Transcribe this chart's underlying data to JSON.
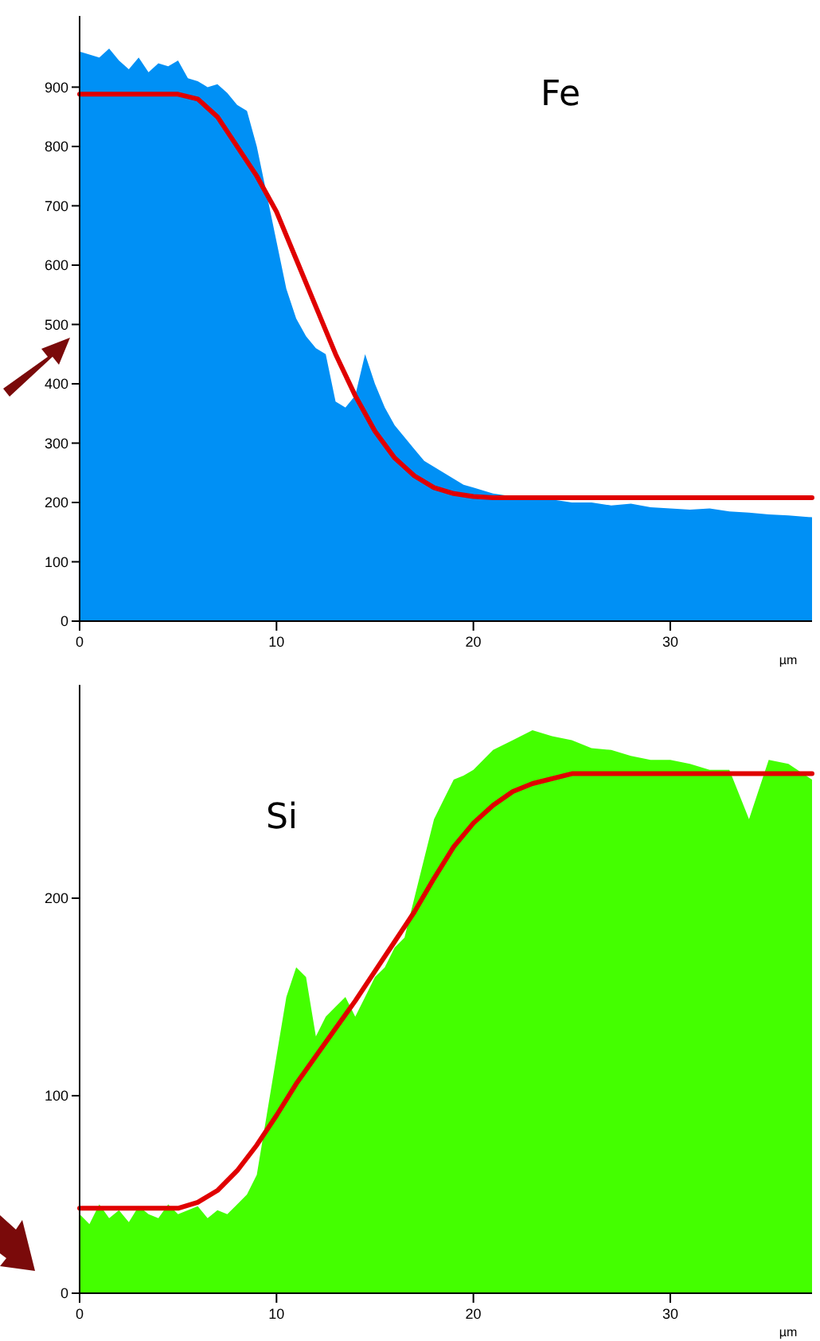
{
  "chart_data": [
    {
      "type": "area",
      "title": "Fe",
      "xlabel": "µm",
      "xlim": [
        0,
        37.2
      ],
      "ylim": [
        0,
        1020
      ],
      "xticks": [
        0,
        10,
        20,
        30
      ],
      "yticks": [
        0,
        100,
        200,
        300,
        400,
        500,
        600,
        700,
        800,
        900
      ],
      "series": [
        {
          "color": "#0090f5",
          "x": [
            0,
            0.5,
            1,
            1.5,
            2,
            2.5,
            3,
            3.5,
            4,
            4.5,
            5,
            5.5,
            6,
            6.5,
            7,
            7.5,
            8,
            8.5,
            9,
            9.5,
            10,
            10.5,
            11,
            11.5,
            12,
            12.5,
            13,
            13.5,
            14,
            14.5,
            15,
            15.5,
            16,
            16.5,
            17,
            17.5,
            18,
            18.5,
            19,
            19.5,
            20,
            21,
            22,
            23,
            24,
            25,
            26,
            27,
            28,
            29,
            30,
            31,
            32,
            33,
            34,
            35,
            36,
            37.2
          ],
          "values": [
            960,
            955,
            950,
            965,
            945,
            930,
            950,
            925,
            940,
            935,
            945,
            915,
            910,
            900,
            905,
            890,
            870,
            860,
            800,
            720,
            640,
            560,
            510,
            480,
            460,
            450,
            370,
            360,
            380,
            450,
            400,
            360,
            330,
            310,
            290,
            270,
            260,
            250,
            240,
            230,
            225,
            215,
            210,
            205,
            205,
            200,
            200,
            195,
            198,
            192,
            190,
            188,
            190,
            185,
            183,
            180,
            178,
            175
          ]
        },
        {
          "type": "line",
          "color": "#e00000",
          "x": [
            0,
            5,
            6,
            7,
            8,
            9,
            10,
            11,
            12,
            13,
            14,
            15,
            16,
            17,
            18,
            19,
            20,
            21,
            37.2
          ],
          "values": [
            888,
            888,
            880,
            850,
            800,
            750,
            690,
            610,
            530,
            450,
            380,
            320,
            275,
            245,
            225,
            215,
            210,
            208,
            208
          ]
        }
      ]
    },
    {
      "type": "area",
      "title": "Si",
      "xlabel": "µm",
      "xlim": [
        0,
        37.2
      ],
      "ylim": [
        0,
        308
      ],
      "xticks": [
        0,
        10,
        20,
        30
      ],
      "yticks": [
        0,
        100,
        200
      ],
      "series": [
        {
          "color": "#44ff00",
          "x": [
            0,
            0.5,
            1,
            1.5,
            2,
            2.5,
            3,
            3.5,
            4,
            4.5,
            5,
            5.5,
            6,
            6.5,
            7,
            7.5,
            8,
            8.5,
            9,
            9.5,
            10,
            10.5,
            11,
            11.5,
            12,
            12.5,
            13,
            13.5,
            14,
            14.5,
            15,
            15.5,
            16,
            16.5,
            17,
            17.5,
            18,
            18.5,
            19,
            19.5,
            20,
            21,
            22,
            23,
            24,
            25,
            26,
            27,
            28,
            29,
            30,
            31,
            32,
            33,
            34,
            35,
            36,
            37.2
          ],
          "values": [
            40,
            35,
            45,
            38,
            42,
            36,
            44,
            40,
            38,
            45,
            40,
            42,
            44,
            38,
            42,
            40,
            45,
            50,
            60,
            90,
            120,
            150,
            165,
            160,
            130,
            140,
            145,
            150,
            140,
            150,
            160,
            165,
            175,
            180,
            200,
            220,
            240,
            250,
            260,
            262,
            265,
            275,
            280,
            285,
            282,
            280,
            276,
            275,
            272,
            270,
            270,
            268,
            265,
            265,
            240,
            270,
            268,
            260
          ]
        },
        {
          "type": "line",
          "color": "#e00000",
          "x": [
            0,
            5,
            6,
            7,
            8,
            9,
            10,
            11,
            12,
            13,
            14,
            15,
            16,
            17,
            18,
            19,
            20,
            21,
            22,
            23,
            25,
            37.2
          ],
          "values": [
            43,
            43,
            46,
            52,
            62,
            75,
            90,
            106,
            120,
            134,
            148,
            163,
            178,
            193,
            210,
            226,
            238,
            247,
            254,
            258,
            263,
            263
          ]
        }
      ]
    }
  ]
}
